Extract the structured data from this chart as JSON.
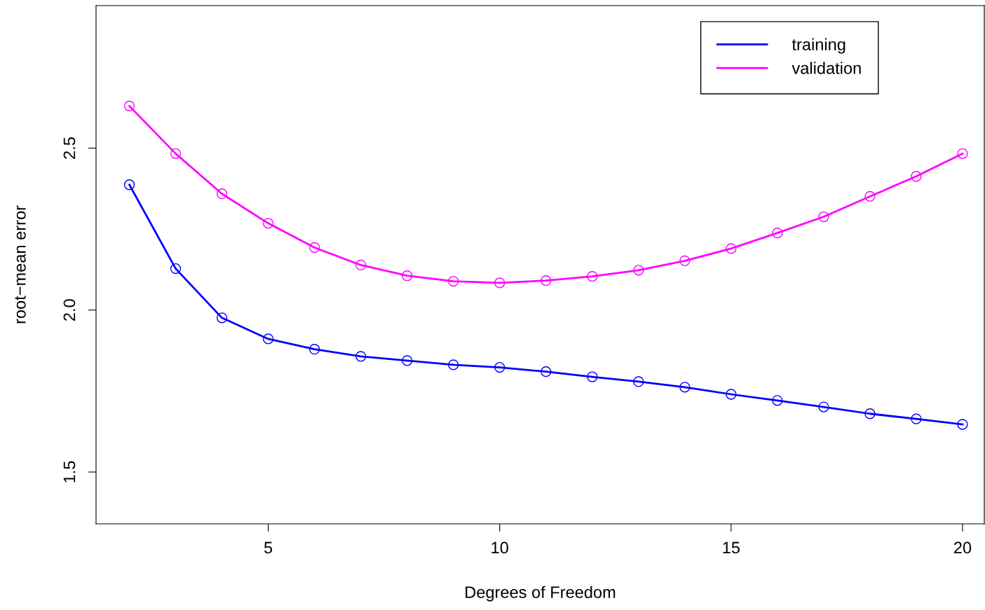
{
  "chart_data": {
    "type": "line",
    "xlabel": "Degrees of Freedom",
    "ylabel": "root−mean error",
    "x": [
      2,
      3,
      4,
      5,
      6,
      7,
      8,
      9,
      10,
      11,
      12,
      13,
      14,
      15,
      16,
      17,
      18,
      19,
      20
    ],
    "series": [
      {
        "name": "training",
        "color": "#0000ff",
        "values": [
          2.387,
          2.128,
          1.976,
          1.911,
          1.879,
          1.857,
          1.844,
          1.831,
          1.823,
          1.81,
          1.794,
          1.779,
          1.762,
          1.74,
          1.721,
          1.701,
          1.68,
          1.664,
          1.647
        ]
      },
      {
        "name": "validation",
        "color": "#ff00ff",
        "values": [
          2.63,
          2.483,
          2.359,
          2.268,
          2.193,
          2.139,
          2.106,
          2.089,
          2.084,
          2.091,
          2.104,
          2.123,
          2.152,
          2.19,
          2.238,
          2.288,
          2.351,
          2.413,
          2.483
        ]
      }
    ],
    "xlim": [
      1.28,
      20.47
    ],
    "ylim": [
      1.34,
      2.94
    ],
    "xticks": [
      5,
      10,
      15,
      20
    ],
    "yticks": [
      1.5,
      {
        "value": 2,
        "label": "2.0"
      },
      2.5
    ],
    "grid": false,
    "legend": "top right",
    "marker": "circle",
    "line_style": "solid"
  }
}
